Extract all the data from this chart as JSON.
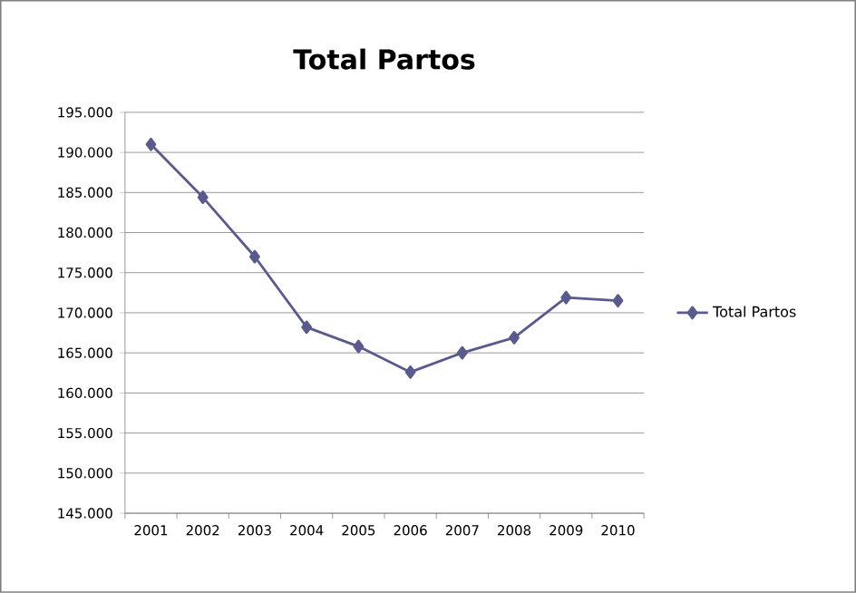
{
  "chart_data": {
    "type": "line",
    "title": "Total Partos",
    "categories": [
      "2001",
      "2002",
      "2003",
      "2004",
      "2005",
      "2006",
      "2007",
      "2008",
      "2009",
      "2010"
    ],
    "series": [
      {
        "name": "Total Partos",
        "color": "#5a5a8e",
        "values": [
          191000,
          184400,
          177000,
          168200,
          165800,
          162600,
          165000,
          166900,
          171900,
          171500
        ]
      }
    ],
    "ylim": [
      145000,
      195000
    ],
    "yticks": [
      {
        "value": 145000,
        "label": "145.000"
      },
      {
        "value": 150000,
        "label": "150.000"
      },
      {
        "value": 155000,
        "label": "155.000"
      },
      {
        "value": 160000,
        "label": "160.000"
      },
      {
        "value": 165000,
        "label": "165.000"
      },
      {
        "value": 170000,
        "label": "170.000"
      },
      {
        "value": 175000,
        "label": "175.000"
      },
      {
        "value": 180000,
        "label": "180.000"
      },
      {
        "value": 185000,
        "label": "185.000"
      },
      {
        "value": 190000,
        "label": "190.000"
      },
      {
        "value": 195000,
        "label": "195.000"
      }
    ],
    "grid": "y",
    "legend": "right",
    "marker": "diamond",
    "line_style": "solid"
  }
}
